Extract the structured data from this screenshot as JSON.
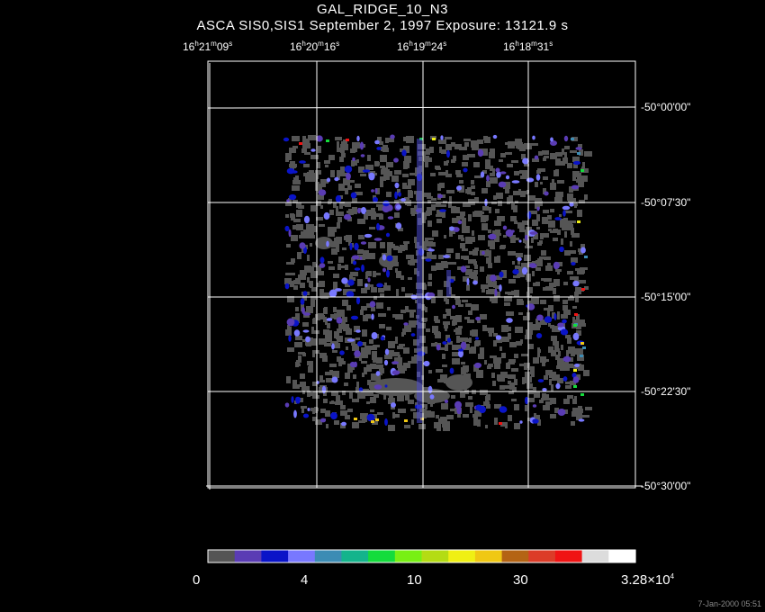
{
  "title": "GAL_RIDGE_10_N3",
  "subtitle": "ASCA SIS0,SIS1 September 2, 1997 Exposure: 13121.9 s",
  "ra_labels": [
    {
      "h": "16",
      "m": "21",
      "s": "09"
    },
    {
      "h": "16",
      "m": "20",
      "s": "16"
    },
    {
      "h": "16",
      "m": "19",
      "s": "24"
    },
    {
      "h": "16",
      "m": "18",
      "s": "31"
    }
  ],
  "dec_labels": [
    "-50°00'00\"",
    "-50°07'30\"",
    "-50°15'00\"",
    "-50°22'30\"",
    "-50°30'00\""
  ],
  "colorbar": {
    "colors": [
      "#555555",
      "#5a3cb4",
      "#0a14c8",
      "#7878ff",
      "#3c8cb4",
      "#14b48c",
      "#14dc3c",
      "#78f014",
      "#b4dc14",
      "#f0f014",
      "#f0c814",
      "#b46414",
      "#dc3c28",
      "#f01414",
      "#dcdcdc",
      "#ffffff"
    ],
    "labels": [
      "0",
      "4",
      "10",
      "30"
    ],
    "max_label_base": "3.28×10",
    "max_label_exp": "4"
  },
  "timestamp": "7-Jan-2000 05:51"
}
